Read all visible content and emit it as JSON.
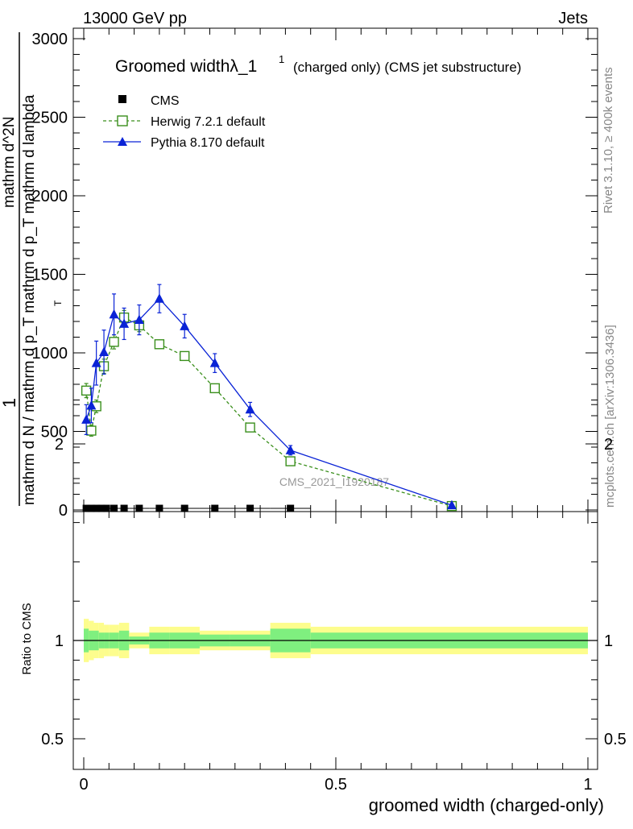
{
  "header": {
    "energy_label": "13000 GeV pp",
    "category_label": "Jets"
  },
  "side_labels": {
    "rivet": "Rivet 3.1.10, ≥ 400k events",
    "mcplots": "mcplots.cern.ch [arXiv:1306.3436]"
  },
  "watermark": "CMS_2021_I1920187",
  "chart_data": [
    {
      "type": "line",
      "title": "Groomed widthλ_1",
      "title_sup": "1",
      "title_suffix": "(charged only) (CMS jet substructure)",
      "ylabel_top": "1",
      "ylabel_bottom": "mathrm d N / mathrm d p_T mathrm d p_T mathrm d lambda",
      "ylabel_numer": "mathrm d^2N",
      "ylabel_sub": "T",
      "xlim": [
        0,
        1
      ],
      "ylim": [
        0,
        3000
      ],
      "y_ticks": [
        0,
        500,
        1000,
        1500,
        2000,
        2500,
        3000
      ],
      "y_tick_labels": [
        "0",
        "500",
        "1000",
        "1500",
        "2000",
        "2500",
        "3000"
      ],
      "grid": false,
      "legend_position": "top-left",
      "series": [
        {
          "name": "CMS",
          "marker": "square-filled",
          "color": "#000000",
          "x": [
            0.005,
            0.015,
            0.025,
            0.035,
            0.045,
            0.06,
            0.08,
            0.11,
            0.15,
            0.2,
            0.26,
            0.33,
            0.41
          ],
          "y": [
            5,
            5,
            5,
            5,
            5,
            5,
            5,
            5,
            5,
            5,
            5,
            5,
            5
          ],
          "xerr": [
            0.005,
            0.005,
            0.005,
            0.005,
            0.005,
            0.01,
            0.01,
            0.02,
            0.02,
            0.03,
            0.03,
            0.04,
            0.04
          ]
        },
        {
          "name": "Herwig 7.2.1 default",
          "marker": "square-open",
          "line": "dashed",
          "color": "#3a8f1c",
          "x": [
            0.005,
            0.015,
            0.025,
            0.04,
            0.06,
            0.08,
            0.11,
            0.15,
            0.2,
            0.26,
            0.33,
            0.41,
            0.73
          ],
          "y": [
            760,
            505,
            660,
            915,
            1070,
            1225,
            1175,
            1055,
            980,
            775,
            525,
            310,
            25
          ],
          "err": [
            45,
            35,
            40,
            45,
            45,
            45,
            40,
            25,
            20,
            15,
            15,
            10,
            5
          ]
        },
        {
          "name": "Pythia 8.170 default",
          "marker": "triangle-filled",
          "line": "solid",
          "color": "#0a23d6",
          "x": [
            0.005,
            0.015,
            0.025,
            0.04,
            0.06,
            0.08,
            0.11,
            0.15,
            0.2,
            0.26,
            0.33,
            0.41,
            0.73
          ],
          "y": [
            575,
            665,
            935,
            1005,
            1245,
            1185,
            1210,
            1345,
            1170,
            935,
            640,
            380,
            30
          ],
          "err": [
            95,
            110,
            140,
            140,
            130,
            100,
            95,
            90,
            75,
            60,
            45,
            30,
            8
          ]
        }
      ]
    },
    {
      "type": "area",
      "ylabel": "Ratio to CMS",
      "xlabel": "groomed width (charged-only)",
      "xlim": [
        0,
        1
      ],
      "ylim": [
        0.35,
        2.35
      ],
      "x_ticks": [
        0,
        0.5,
        1
      ],
      "x_tick_labels": [
        "0",
        "0.5",
        "1"
      ],
      "y_ticks": [
        0.5,
        1,
        2
      ],
      "y_tick_labels": [
        "0.5",
        "1",
        "2"
      ],
      "reference": 1,
      "band_edges": [
        0,
        0.01,
        0.02,
        0.03,
        0.04,
        0.05,
        0.07,
        0.09,
        0.13,
        0.17,
        0.23,
        0.29,
        0.37,
        0.45,
        1.0
      ],
      "band_inner": [
        0.06,
        0.05,
        0.05,
        0.04,
        0.04,
        0.04,
        0.05,
        0.02,
        0.04,
        0.04,
        0.03,
        0.03,
        0.06,
        0.04
      ],
      "band_outer": [
        0.11,
        0.1,
        0.09,
        0.09,
        0.08,
        0.08,
        0.09,
        0.04,
        0.07,
        0.07,
        0.05,
        0.05,
        0.09,
        0.07
      ],
      "band_colors": {
        "inner": "#7fef7f",
        "outer": "#fdfd8d"
      }
    }
  ]
}
